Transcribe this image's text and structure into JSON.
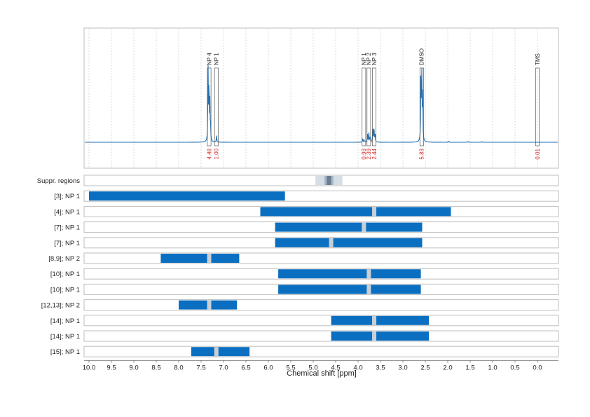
{
  "chart_data": {
    "type": "nmr-spectrum-with-range-bars",
    "xlabel": "Chemical shift [ppm]",
    "xlim": [
      10.0,
      0.0
    ],
    "x_reversed": true,
    "x_ticks": [
      "10.0",
      "9.5",
      "9.0",
      "8.5",
      "8.0",
      "7.5",
      "7.0",
      "6.5",
      "6.0",
      "5.5",
      "5.0",
      "4.5",
      "4.0",
      "3.5",
      "3.0",
      "2.5",
      "2.0",
      "1.5",
      "1.0",
      "0.5",
      "0.0"
    ],
    "colors": {
      "spectrum": "#1f6fb2",
      "bar": "#0a6fc1",
      "gap": "#c7d0d8",
      "integral_text": "#d62728",
      "suppr_light": "#d5dde5",
      "suppr_dark": "#6a7d90"
    },
    "peaks": [
      {
        "label": "NP 4",
        "ppm": 7.32,
        "integral": "4.48"
      },
      {
        "label": "NP 1",
        "ppm": 7.16,
        "integral": "1.00"
      },
      {
        "label": "NP 1",
        "ppm": 3.87,
        "integral": "0.93"
      },
      {
        "label": "NP 2",
        "ppm": 3.76,
        "integral": "2.39"
      },
      {
        "label": "NP 3",
        "ppm": 3.64,
        "integral": "2.44"
      },
      {
        "label": "DMSO",
        "ppm": 2.58,
        "integral": "5.83"
      },
      {
        "label": "TMS",
        "ppm": 0.0,
        "integral": "0.01"
      }
    ],
    "suppressed_regions": {
      "label": "Suppr. regions",
      "light": [
        4.95,
        4.35
      ],
      "mid": [
        4.75,
        4.55
      ],
      "dark": [
        4.7,
        4.6
      ]
    },
    "rows": [
      {
        "label": "[3]; NP 1",
        "range": [
          10.0,
          5.63
        ],
        "gap": null
      },
      {
        "label": "[4]; NP 1",
        "range": [
          6.18,
          1.93
        ],
        "gap": 3.64
      },
      {
        "label": "[7]; NP 1",
        "range": [
          5.85,
          2.57
        ],
        "gap": 3.87
      },
      {
        "label": "[7]; NP 1",
        "range": [
          5.85,
          2.57
        ],
        "gap": 4.6
      },
      {
        "label": "[8,9]; NP 2",
        "range": [
          8.4,
          6.65
        ],
        "gap": 7.32
      },
      {
        "label": "[10]; NP 1",
        "range": [
          5.78,
          2.6
        ],
        "gap": 3.76
      },
      {
        "label": "[10]; NP 1",
        "range": [
          5.78,
          2.6
        ],
        "gap": 3.76
      },
      {
        "label": "[12,13]; NP 2",
        "range": [
          8.0,
          6.7
        ],
        "gap": 7.32
      },
      {
        "label": "[14]; NP 1",
        "range": [
          4.6,
          2.42
        ],
        "gap": 3.64
      },
      {
        "label": "[14]; NP 1",
        "range": [
          4.6,
          2.42
        ],
        "gap": 3.64
      },
      {
        "label": "[15]; NP 1",
        "range": [
          7.72,
          6.42
        ],
        "gap": 7.16
      }
    ]
  }
}
